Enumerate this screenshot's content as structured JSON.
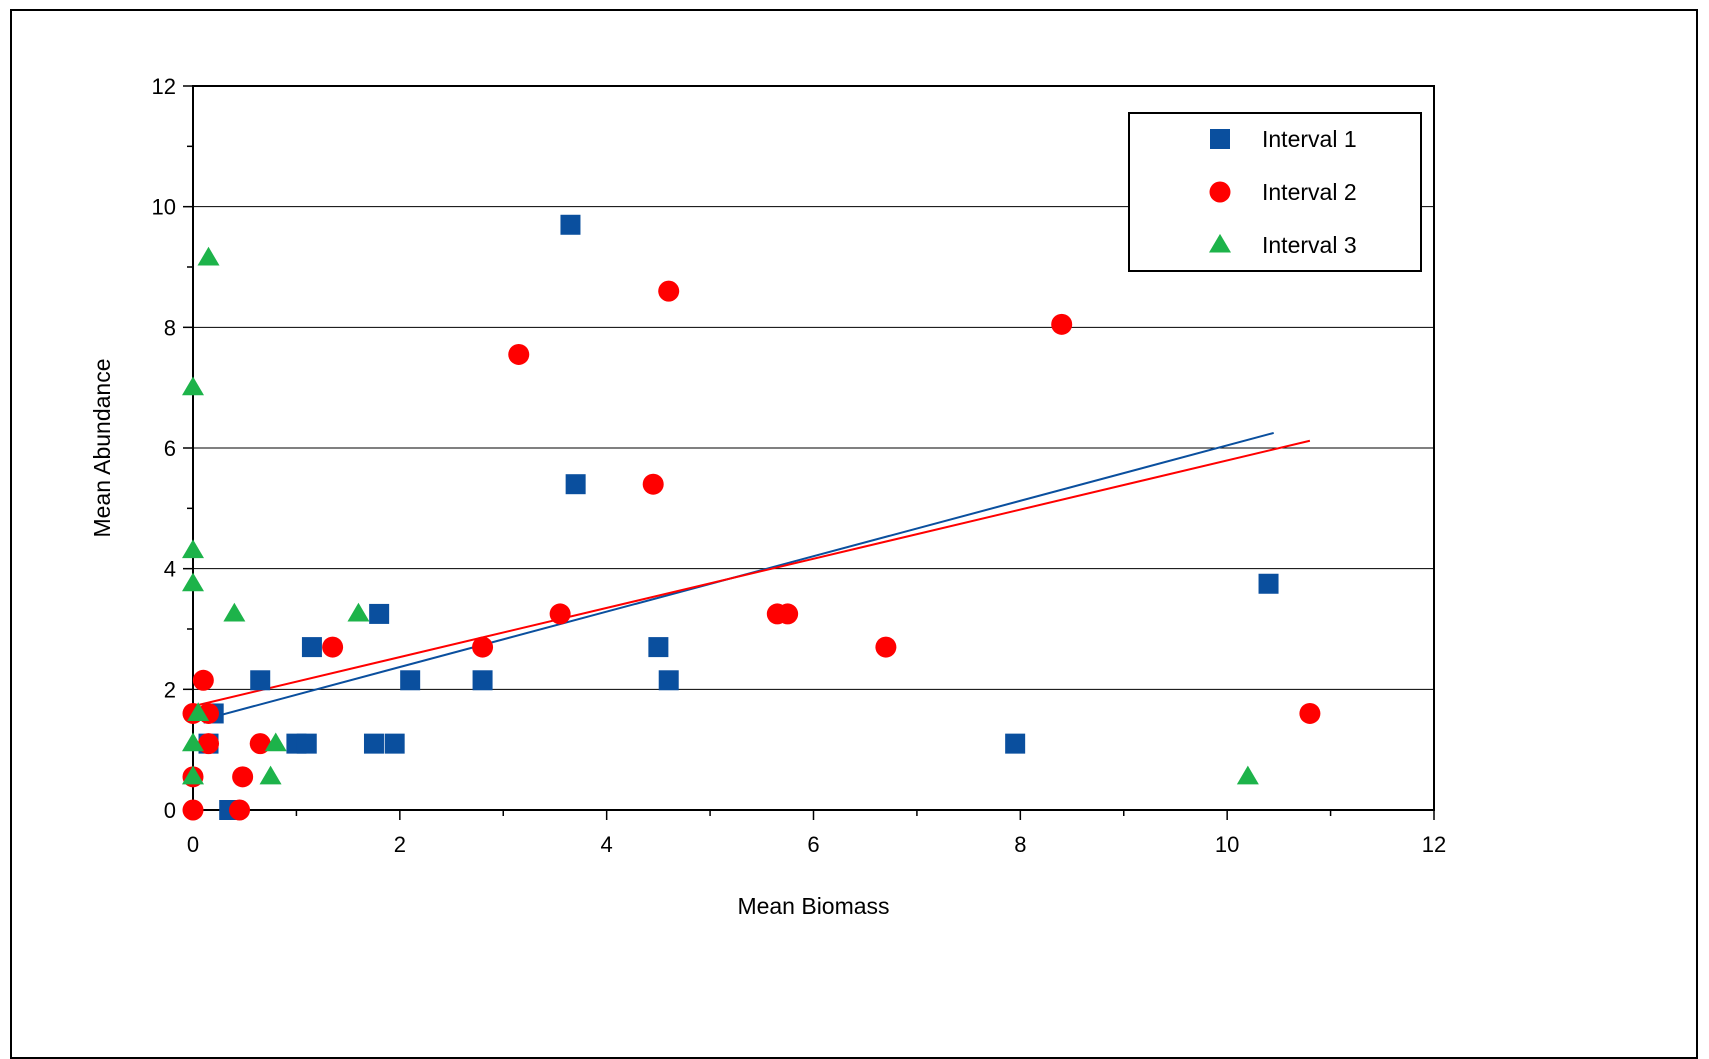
{
  "chart_data": {
    "type": "scatter",
    "title": "",
    "xlabel": "Mean Biomass",
    "ylabel": "Mean Abundance",
    "xlim": [
      0,
      12
    ],
    "ylim": [
      0,
      12
    ],
    "x_ticks": [
      "0",
      "2",
      "4",
      "6",
      "8",
      "10",
      "12"
    ],
    "y_ticks": [
      "0",
      "2",
      "4",
      "6",
      "8",
      "10",
      "12"
    ],
    "grid": "horizontal",
    "legend_position": "top-right",
    "series": [
      {
        "name": "Interval 1",
        "marker": "square",
        "color": "#0a4f9e",
        "points": [
          [
            0.2,
            1.6
          ],
          [
            0.15,
            1.1
          ],
          [
            0.35,
            0.0
          ],
          [
            0.65,
            2.15
          ],
          [
            1.0,
            1.1
          ],
          [
            1.1,
            1.1
          ],
          [
            1.15,
            2.7
          ],
          [
            1.75,
            1.1
          ],
          [
            1.8,
            3.25
          ],
          [
            1.95,
            1.1
          ],
          [
            2.1,
            2.15
          ],
          [
            2.8,
            2.15
          ],
          [
            3.65,
            9.7
          ],
          [
            3.7,
            5.4
          ],
          [
            4.5,
            2.7
          ],
          [
            4.6,
            2.15
          ],
          [
            7.95,
            1.1
          ],
          [
            10.4,
            3.75
          ]
        ],
        "trendline": {
          "x": [
            0.15,
            10.45
          ],
          "y": [
            1.52,
            6.25
          ]
        }
      },
      {
        "name": "Interval 2",
        "marker": "circle",
        "color": "#ff0000",
        "points": [
          [
            0.0,
            1.6
          ],
          [
            0.0,
            0.55
          ],
          [
            0.0,
            0.0
          ],
          [
            0.1,
            2.15
          ],
          [
            0.15,
            1.6
          ],
          [
            0.15,
            1.1
          ],
          [
            0.45,
            0.0
          ],
          [
            0.48,
            0.55
          ],
          [
            0.65,
            1.1
          ],
          [
            1.35,
            2.7
          ],
          [
            2.8,
            2.7
          ],
          [
            3.15,
            7.55
          ],
          [
            3.55,
            3.25
          ],
          [
            4.45,
            5.4
          ],
          [
            4.6,
            8.6
          ],
          [
            5.65,
            3.25
          ],
          [
            5.75,
            3.25
          ],
          [
            6.7,
            2.7
          ],
          [
            8.4,
            8.05
          ],
          [
            10.8,
            1.6
          ]
        ],
        "trendline": {
          "x": [
            0.0,
            10.8
          ],
          "y": [
            1.72,
            6.12
          ]
        }
      },
      {
        "name": "Interval 3",
        "marker": "triangle",
        "color": "#1db34a",
        "points": [
          [
            0.0,
            7.0
          ],
          [
            0.0,
            4.3
          ],
          [
            0.0,
            3.75
          ],
          [
            0.0,
            1.1
          ],
          [
            0.0,
            0.55
          ],
          [
            0.05,
            1.6
          ],
          [
            0.15,
            9.15
          ],
          [
            0.4,
            3.25
          ],
          [
            0.75,
            0.55
          ],
          [
            0.8,
            1.1
          ],
          [
            1.6,
            3.25
          ],
          [
            10.2,
            0.55
          ]
        ]
      }
    ]
  }
}
